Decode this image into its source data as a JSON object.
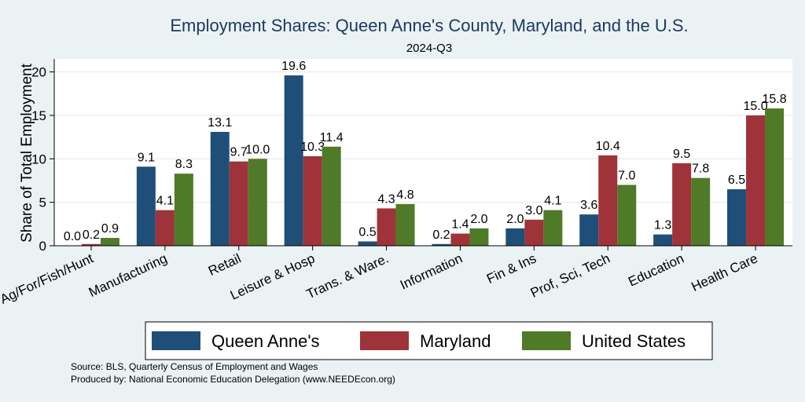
{
  "chart_data": {
    "type": "bar",
    "title": "Employment Shares: Queen Anne's County, Maryland, and the U.S.",
    "subtitle": "2024-Q3",
    "xlabel": "",
    "ylabel": "Share of Total Employment",
    "ylim": [
      0,
      21.5
    ],
    "yticks": [
      0,
      5,
      10,
      15,
      20
    ],
    "grid": true,
    "legend_position": "bottom",
    "categories": [
      "Ag/For/Fish/Hunt",
      "Manufacturing",
      "Retail",
      "Leisure & Hosp",
      "Trans. & Ware.",
      "Information",
      "Fin & Ins",
      "Prof, Sci, Tech",
      "Education",
      "Health Care"
    ],
    "series": [
      {
        "name": "Queen Anne's",
        "color": "#1f4e79",
        "values": [
          0.0,
          9.1,
          13.1,
          19.6,
          0.5,
          0.2,
          2.0,
          3.6,
          1.3,
          6.5
        ]
      },
      {
        "name": "Maryland",
        "color": "#9e3339",
        "values": [
          0.2,
          4.1,
          9.7,
          10.3,
          4.3,
          1.4,
          3.0,
          10.4,
          9.5,
          15.0
        ]
      },
      {
        "name": "United States",
        "color": "#4f7a28",
        "values": [
          0.9,
          8.3,
          10.0,
          11.4,
          4.8,
          2.0,
          4.1,
          7.0,
          7.8,
          15.8
        ]
      }
    ],
    "notes": [
      "Source: BLS, Quarterly Census of Employment and Wages",
      "Produced by: National Economic Education Delegation (www.NEEDEcon.org)"
    ]
  }
}
